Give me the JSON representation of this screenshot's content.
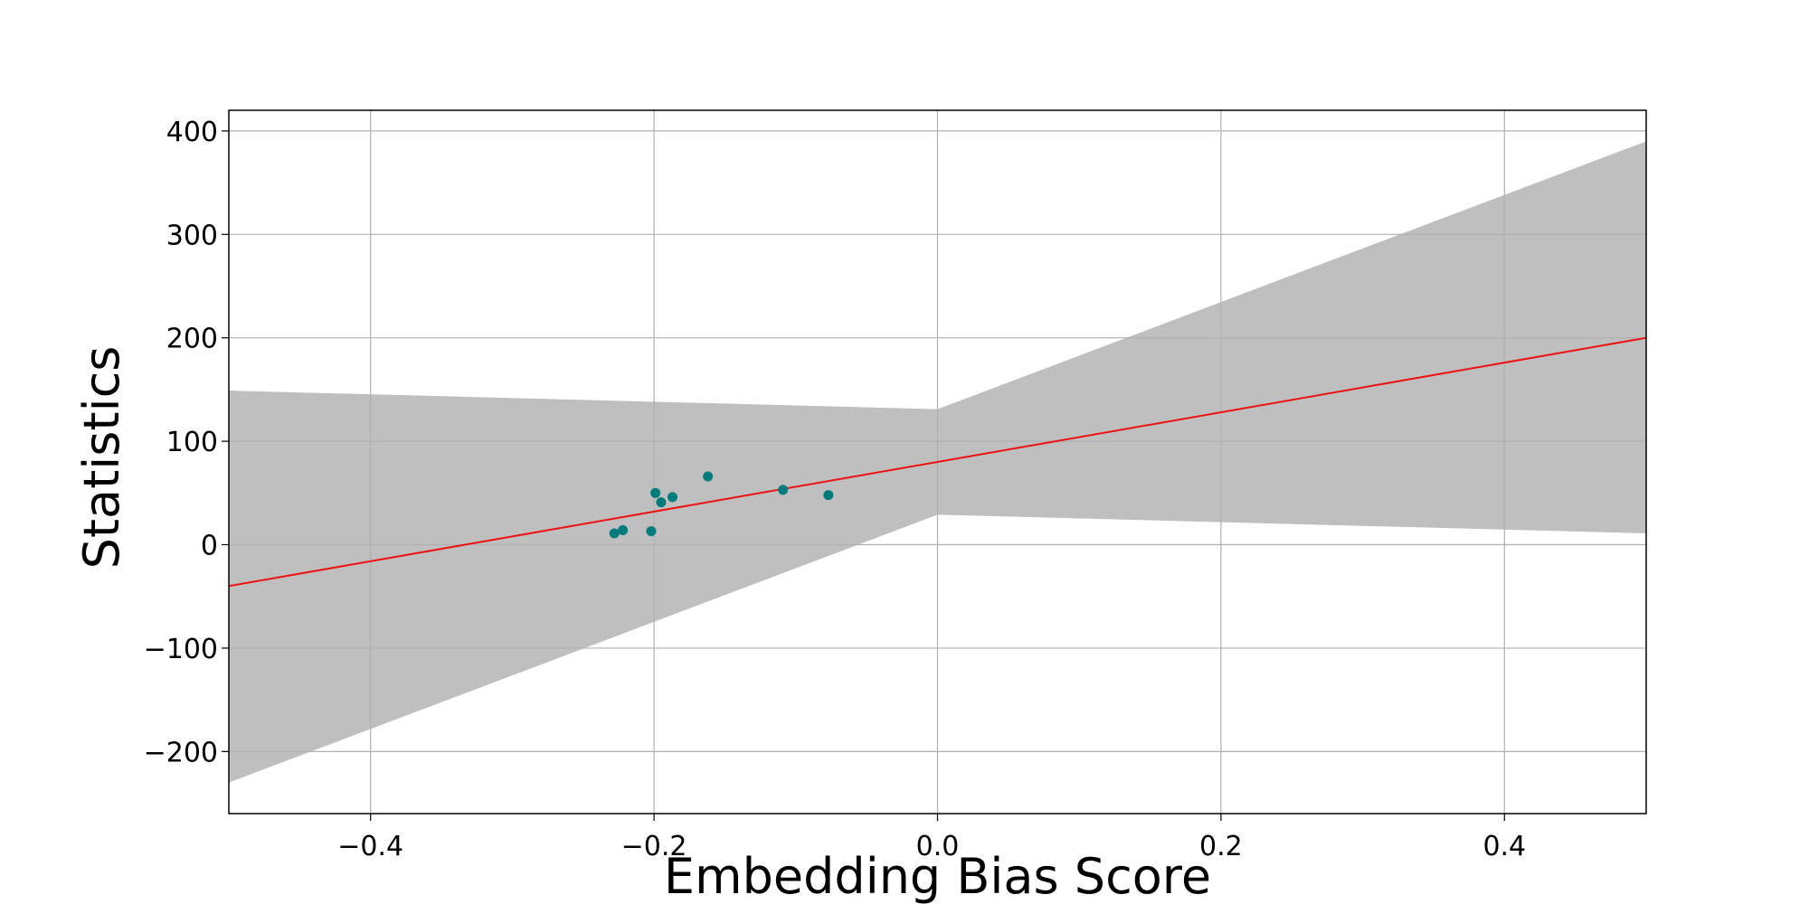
{
  "chart_data": {
    "type": "scatter",
    "title": "",
    "xlabel": "Embedding Bias Score",
    "ylabel": "Statistics",
    "xlim": [
      -0.5,
      0.5
    ],
    "ylim": [
      -260,
      420
    ],
    "grid": true,
    "x_ticks": [
      -0.4,
      -0.2,
      0.0,
      0.2,
      0.4
    ],
    "x_tick_labels": [
      "−0.4",
      "−0.2",
      "0.0",
      "0.2",
      "0.4"
    ],
    "y_ticks": [
      -200,
      -100,
      0,
      100,
      200,
      300,
      400
    ],
    "y_tick_labels": [
      "−200",
      "−100",
      "0",
      "100",
      "200",
      "300",
      "400"
    ],
    "series": [
      {
        "kind": "points",
        "color": "#007b7b",
        "points": [
          {
            "x": -0.228,
            "y": 11
          },
          {
            "x": -0.222,
            "y": 14
          },
          {
            "x": -0.202,
            "y": 13
          },
          {
            "x": -0.199,
            "y": 50
          },
          {
            "x": -0.195,
            "y": 41
          },
          {
            "x": -0.187,
            "y": 46
          },
          {
            "x": -0.162,
            "y": 66
          },
          {
            "x": -0.109,
            "y": 53
          },
          {
            "x": -0.077,
            "y": 48
          }
        ]
      },
      {
        "kind": "fit_line",
        "color": "#ee1111",
        "points": [
          {
            "x": -0.5,
            "y": -40
          },
          {
            "x": 0.5,
            "y": 200
          }
        ]
      },
      {
        "kind": "confidence_band",
        "color": "#bfbfbf",
        "upper": [
          {
            "x": -0.5,
            "y": 149
          },
          {
            "x": 0.0,
            "y": 131
          },
          {
            "x": 0.5,
            "y": 390
          }
        ],
        "lower": [
          {
            "x": -0.5,
            "y": -230
          },
          {
            "x": 0.0,
            "y": 29
          },
          {
            "x": 0.5,
            "y": 11
          }
        ]
      }
    ]
  }
}
